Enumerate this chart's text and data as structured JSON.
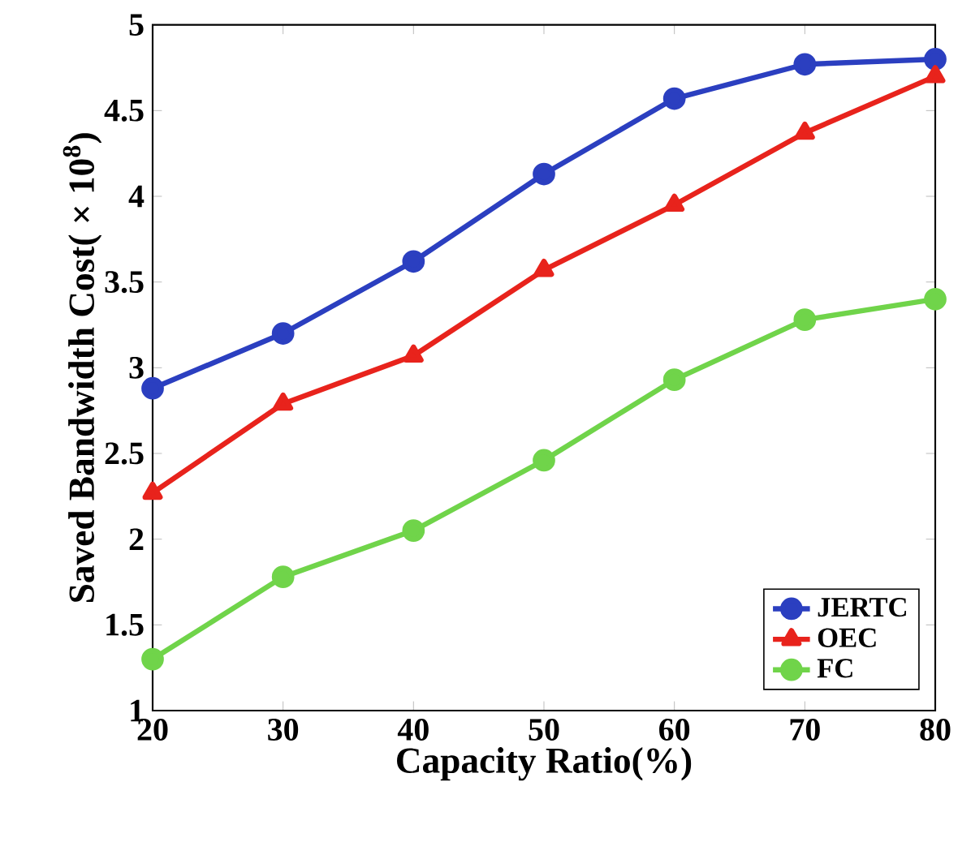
{
  "chart_data": {
    "type": "line",
    "xlabel": "Capacity Ratio(%)",
    "ylabel": "Saved Bandwidth Cost( × 10$^{8}$)",
    "x": [
      20,
      30,
      40,
      50,
      60,
      70,
      80
    ],
    "series": [
      {
        "name": "JERTC",
        "color": "#2b3fc0",
        "marker": "circle",
        "values": [
          2.88,
          3.2,
          3.62,
          4.13,
          4.57,
          4.77,
          4.8
        ]
      },
      {
        "name": "OEC",
        "color": "#e8231c",
        "marker": "triangle",
        "values": [
          2.27,
          2.79,
          3.07,
          3.57,
          3.95,
          4.37,
          4.7
        ]
      },
      {
        "name": "FC",
        "color": "#70d44a",
        "marker": "circle",
        "values": [
          1.3,
          1.78,
          2.05,
          2.46,
          2.93,
          3.28,
          3.4
        ]
      }
    ],
    "xlim": [
      20,
      80
    ],
    "ylim": [
      1,
      5
    ],
    "xticks": [
      20,
      30,
      40,
      50,
      60,
      70,
      80
    ],
    "yticks": [
      1,
      1.5,
      2,
      2.5,
      3,
      3.5,
      4,
      4.5,
      5
    ],
    "grid": false,
    "legend": "bottom right",
    "line_style": "solid"
  }
}
